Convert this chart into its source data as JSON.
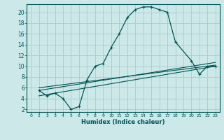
{
  "xlabel": "Humidex (Indice chaleur)",
  "bg_color": "#cce8e8",
  "grid_color": "#aacccc",
  "line_color": "#005555",
  "xlim": [
    -0.5,
    23.5
  ],
  "ylim": [
    1.5,
    21.5
  ],
  "xticks": [
    0,
    1,
    2,
    3,
    4,
    5,
    6,
    7,
    8,
    9,
    10,
    11,
    12,
    13,
    14,
    15,
    16,
    17,
    18,
    19,
    20,
    21,
    22,
    23
  ],
  "yticks": [
    2,
    4,
    6,
    8,
    10,
    12,
    14,
    16,
    18,
    20
  ],
  "curve1_x": [
    1,
    2,
    3,
    4,
    5,
    6,
    7,
    8,
    9,
    10,
    11,
    12,
    13,
    14,
    15,
    16,
    17,
    18,
    20,
    21,
    22,
    23
  ],
  "curve1_y": [
    5.5,
    4.5,
    5.0,
    4.0,
    2.0,
    2.5,
    7.5,
    10.0,
    10.5,
    13.5,
    16.0,
    19.0,
    20.5,
    21.0,
    21.0,
    20.5,
    20.0,
    14.5,
    11.0,
    8.5,
    10.0,
    10.0
  ],
  "line2_x": [
    1,
    23
  ],
  "line2_y": [
    6.0,
    10.2
  ],
  "line3_x": [
    1,
    23
  ],
  "line3_y": [
    5.5,
    10.7
  ],
  "line4_x": [
    1,
    23
  ],
  "line4_y": [
    4.5,
    10.0
  ]
}
